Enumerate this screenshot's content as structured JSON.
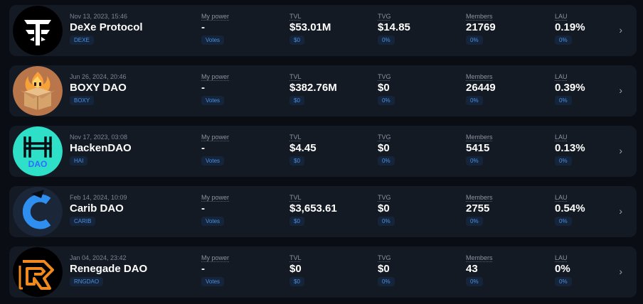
{
  "daos": [
    {
      "date": "Nov 13, 2023, 15:46",
      "name": "DeXe Protocol",
      "ticker": "DEXE",
      "power_label": "My power",
      "power": "-",
      "votes": "Votes",
      "tvl_label": "TVL",
      "tvl": "$53.01M",
      "tvl_sub": "$0",
      "tvg_label": "TVG",
      "tvg": "$14.85",
      "tvg_sub": "0%",
      "members_label": "Members",
      "members": "21769",
      "members_sub": "0%",
      "lau_label": "LAU",
      "lau": "0.19%",
      "lau_sub": "0%",
      "logo_icon": "dexe-logo-icon"
    },
    {
      "date": "Jun 26, 2024, 20:46",
      "name": "BOXY DAO",
      "ticker": "BOXY",
      "power_label": "My power",
      "power": "-",
      "votes": "Votes",
      "tvl_label": "TVL",
      "tvl": "$382.76M",
      "tvl_sub": "$0",
      "tvg_label": "TVG",
      "tvg": "$0",
      "tvg_sub": "0%",
      "members_label": "Members",
      "members": "26449",
      "members_sub": "0%",
      "lau_label": "LAU",
      "lau": "0.39%",
      "lau_sub": "0%",
      "logo_icon": "boxy-logo-icon"
    },
    {
      "date": "Nov 17, 2023, 03:08",
      "name": "HackenDAO",
      "ticker": "HAI",
      "power_label": "My power",
      "power": "-",
      "votes": "Votes",
      "tvl_label": "TVL",
      "tvl": "$4.45",
      "tvl_sub": "$0",
      "tvg_label": "TVG",
      "tvg": "$0",
      "tvg_sub": "0%",
      "members_label": "Members",
      "members": "5415",
      "members_sub": "0%",
      "lau_label": "LAU",
      "lau": "0.13%",
      "lau_sub": "0%",
      "logo_icon": "hacken-logo-icon",
      "logo_text": "DAO"
    },
    {
      "date": "Feb 14, 2024, 10:09",
      "name": "Carib DAO",
      "ticker": "CARIB",
      "power_label": "My power",
      "power": "-",
      "votes": "Votes",
      "tvl_label": "TVL",
      "tvl": "$3,653.61",
      "tvl_sub": "$0",
      "tvg_label": "TVG",
      "tvg": "$0",
      "tvg_sub": "0%",
      "members_label": "Members",
      "members": "2755",
      "members_sub": "0%",
      "lau_label": "LAU",
      "lau": "0.54%",
      "lau_sub": "0%",
      "logo_icon": "carib-logo-icon"
    },
    {
      "date": "Jan 04, 2024, 23:42",
      "name": "Renegade DAO",
      "ticker": "RNGDAO",
      "power_label": "My power",
      "power": "-",
      "votes": "Votes",
      "tvl_label": "TVL",
      "tvl": "$0",
      "tvl_sub": "$0",
      "tvg_label": "TVG",
      "tvg": "$0",
      "tvg_sub": "0%",
      "members_label": "Members",
      "members": "43",
      "members_sub": "0%",
      "lau_label": "LAU",
      "lau": "0%",
      "lau_sub": "0%",
      "logo_icon": "renegade-logo-icon"
    }
  ],
  "chevron_icon": "chevron-right-icon",
  "colors": {
    "background": "#0a0d13",
    "card": "#141a24",
    "badge_text": "#4f8fe0",
    "badge_bg": "#14243a",
    "muted": "#8b93a1"
  }
}
